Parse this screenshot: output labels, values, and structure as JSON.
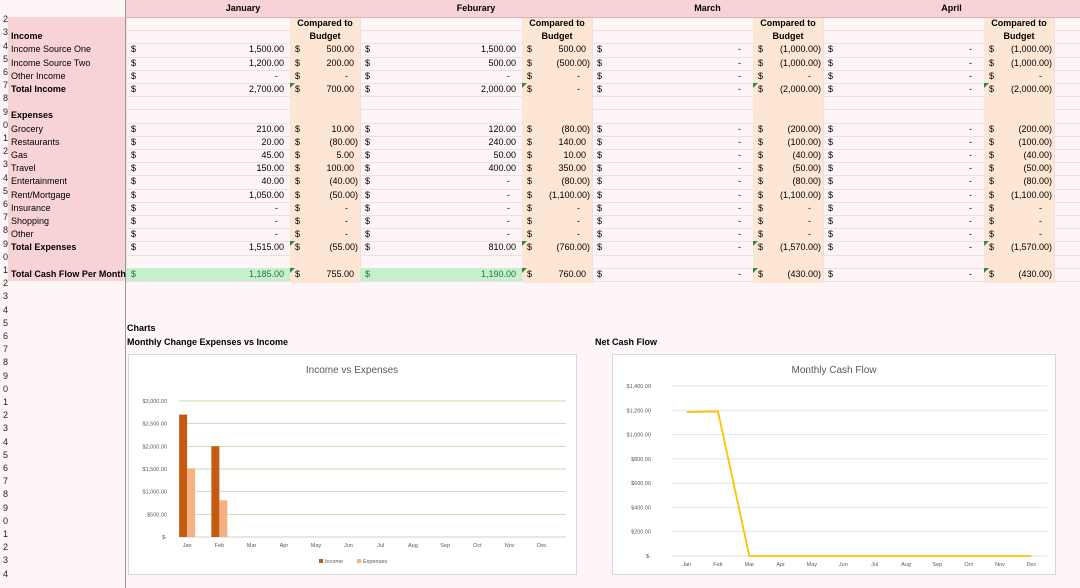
{
  "months": [
    "January",
    "Feburary",
    "March",
    "April"
  ],
  "budget_header_line1": "Compared to",
  "budget_header_line2": "Budget",
  "dollar_sign": "$",
  "row_numbers": [
    "",
    "2",
    "3",
    "4",
    "5",
    "6",
    "7",
    "8",
    "9",
    "0",
    "1",
    "2",
    "3",
    "4",
    "5",
    "6",
    "7",
    "8",
    "9",
    "0",
    "1",
    "2",
    "3",
    "4",
    "5",
    "6",
    "7",
    "8",
    "9",
    "0",
    "1",
    "2",
    "3",
    "4",
    "5",
    "6",
    "7",
    "8",
    "9",
    "0",
    "1",
    "2",
    "3",
    "4"
  ],
  "rows": [
    {
      "label": "Income",
      "bold": true,
      "header": true,
      "values": []
    },
    {
      "label": "Income Source One",
      "values": [
        "1,500.00",
        "500.00",
        "1,500.00",
        "500.00",
        "-",
        "(1,000.00)",
        "-",
        "(1,000.00)"
      ]
    },
    {
      "label": "Income Source Two",
      "values": [
        "1,200.00",
        "200.00",
        "500.00",
        "(500.00)",
        "-",
        "(1,000.00)",
        "-",
        "(1,000.00)"
      ]
    },
    {
      "label": "Other Income",
      "values": [
        "-",
        "-",
        "-",
        "-",
        "-",
        "-",
        "-",
        "-"
      ]
    },
    {
      "label": "Total Income",
      "bold": true,
      "values": [
        "2,700.00",
        "700.00",
        "2,000.00",
        "-",
        "-",
        "(2,000.00)",
        "-",
        "(2,000.00)"
      ]
    },
    {
      "label": "",
      "values": []
    },
    {
      "label": "Expenses",
      "bold": true,
      "header": true,
      "values": []
    },
    {
      "label": "Grocery",
      "values": [
        "210.00",
        "10.00",
        "120.00",
        "(80.00)",
        "-",
        "(200.00)",
        "-",
        "(200.00)"
      ]
    },
    {
      "label": "Restaurants",
      "values": [
        "20.00",
        "(80.00)",
        "240.00",
        "140.00",
        "-",
        "(100.00)",
        "-",
        "(100.00)"
      ]
    },
    {
      "label": "Gas",
      "values": [
        "45.00",
        "5.00",
        "50.00",
        "10.00",
        "-",
        "(40.00)",
        "-",
        "(40.00)"
      ]
    },
    {
      "label": "Travel",
      "values": [
        "150.00",
        "100.00",
        "400.00",
        "350.00",
        "-",
        "(50.00)",
        "-",
        "(50.00)"
      ]
    },
    {
      "label": "Entertainment",
      "values": [
        "40.00",
        "(40.00)",
        "-",
        "(80.00)",
        "-",
        "(80.00)",
        "-",
        "(80.00)"
      ]
    },
    {
      "label": "Rent/Mortgage",
      "values": [
        "1,050.00",
        "(50.00)",
        "-",
        "(1,100.00)",
        "-",
        "(1,100.00)",
        "-",
        "(1,100.00)"
      ]
    },
    {
      "label": "Insurance",
      "values": [
        "-",
        "-",
        "-",
        "-",
        "-",
        "-",
        "-",
        "-"
      ]
    },
    {
      "label": "Shopping",
      "values": [
        "-",
        "-",
        "-",
        "-",
        "-",
        "-",
        "-",
        "-"
      ]
    },
    {
      "label": "Other",
      "values": [
        "-",
        "-",
        "-",
        "-",
        "-",
        "-",
        "-",
        "-"
      ]
    },
    {
      "label": "Total Expenses",
      "bold": true,
      "values": [
        "1,515.00",
        "(55.00)",
        "810.00",
        "(760.00)",
        "-",
        "(1,570.00)",
        "-",
        "(1,570.00)"
      ]
    },
    {
      "label": "",
      "values": []
    },
    {
      "label": "Total Cash Flow Per Month",
      "bold": true,
      "values": [
        "1,185.00",
        "755.00",
        "1,190.00",
        "760.00",
        "-",
        "(430.00)",
        "-",
        "(430.00)"
      ]
    }
  ],
  "charts_heading": "Charts",
  "chart1_section": "Monthly Change Expenses vs Income",
  "chart2_section": "Net Cash Flow",
  "chart_data": [
    {
      "type": "bar",
      "title": "Income vs Expenses",
      "categories": [
        "Jan",
        "Feb",
        "Mar",
        "Apr",
        "May",
        "Jun",
        "Jul",
        "Aug",
        "Sep",
        "Oct",
        "Nov",
        "Dec"
      ],
      "series": [
        {
          "name": "Income",
          "color": "#c55a11",
          "values": [
            2700,
            2000,
            0,
            0,
            0,
            0,
            0,
            0,
            0,
            0,
            0,
            0
          ]
        },
        {
          "name": "Expenses",
          "color": "#f4b183",
          "values": [
            1515,
            810,
            0,
            0,
            0,
            0,
            0,
            0,
            0,
            0,
            0,
            0
          ]
        }
      ],
      "yticks": [
        "$-",
        "$500.00",
        "$1,000.00",
        "$1,500.00",
        "$2,000.00",
        "$2,500.00",
        "$3,000.00"
      ],
      "ylim": [
        0,
        3000
      ],
      "grid": true,
      "legend": "bottom"
    },
    {
      "type": "line",
      "title": "Monthly Cash Flow",
      "categories": [
        "Jan",
        "Feb",
        "Mar",
        "Apr",
        "May",
        "Jun",
        "Jul",
        "Aug",
        "Sep",
        "Oct",
        "Nov",
        "Dec"
      ],
      "series": [
        {
          "color": "#ffc000",
          "values": [
            1185,
            1190,
            0,
            0,
            0,
            0,
            0,
            0,
            0,
            0,
            0,
            0
          ]
        }
      ],
      "yticks": [
        "$-",
        "$200.00",
        "$400.00",
        "$600.00",
        "$800.00",
        "$1,000.00",
        "$1,200.00",
        "$1,400.00"
      ],
      "ylim": [
        0,
        1400
      ],
      "grid": true
    }
  ]
}
